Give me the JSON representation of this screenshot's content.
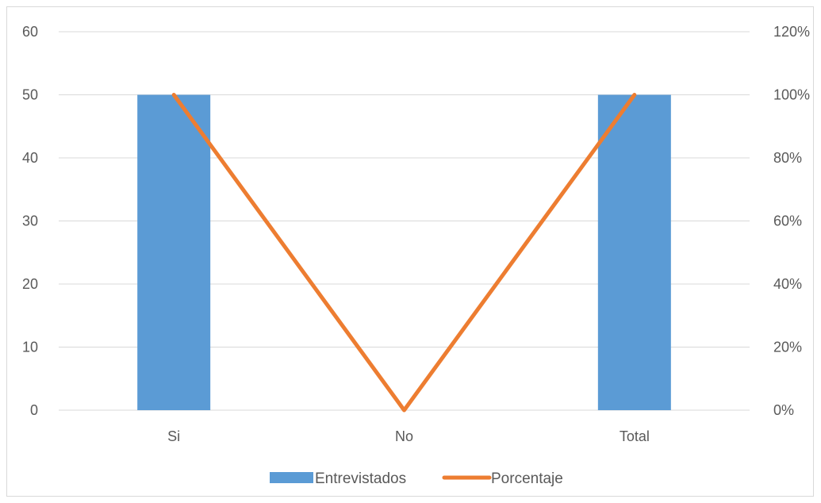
{
  "chart_data": {
    "type": "bar",
    "categories": [
      "Si",
      "No",
      "Total"
    ],
    "series": [
      {
        "name": "Entrevistados",
        "type": "bar",
        "axis": "left",
        "values": [
          50,
          0,
          50
        ],
        "color": "#5b9bd5"
      },
      {
        "name": "Porcentaje",
        "type": "line",
        "axis": "right",
        "values": [
          100,
          0,
          100
        ],
        "color": "#ed7d31"
      }
    ],
    "y_left": {
      "ticks": [
        "0",
        "10",
        "20",
        "30",
        "40",
        "50",
        "60"
      ],
      "ylim": [
        0,
        60
      ]
    },
    "y_right": {
      "ticks": [
        "0%",
        "20%",
        "40%",
        "60%",
        "80%",
        "100%",
        "120%"
      ],
      "ylim": [
        0,
        120
      ]
    },
    "grid": true,
    "legend_position": "bottom",
    "gridline_color": "#d9d9d9"
  }
}
